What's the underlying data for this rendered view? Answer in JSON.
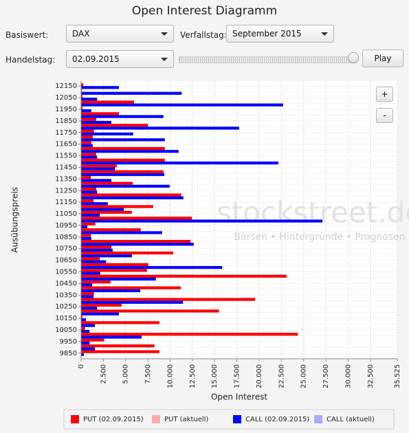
{
  "controls": {
    "title": "Open Interest Diagramm",
    "basiswert_label": "Basiswert:",
    "basiswert": "DAX",
    "verfallstag_label": "Verfallstag:",
    "verfallstag": "September 2015",
    "handelstag_label": "Handelstag:",
    "handelstag": "02.09.2015",
    "play": "Play",
    "zoom_in": "+",
    "zoom_out": "-"
  },
  "chart_data": {
    "type": "hbar",
    "x_label": "Open Interest",
    "y_label": "Ausübungspreis",
    "watermark": "stockstreet.de",
    "watermark_sub": "Börsen • Hintergründe • Prognosen",
    "categories": [
      "12150",
      null,
      "12050",
      null,
      "11950",
      null,
      "11850",
      null,
      "11750",
      null,
      "11650",
      null,
      "11550",
      null,
      "11450",
      null,
      "11350",
      null,
      "11250",
      null,
      "11150",
      null,
      "11050",
      null,
      "10950",
      null,
      "10850",
      null,
      "10750",
      null,
      "10650",
      null,
      "10550",
      null,
      "10450",
      null,
      "10350",
      null,
      "10250",
      null,
      "10150",
      null,
      "10050",
      null,
      "9950",
      null,
      "9850"
    ],
    "series": [
      {
        "name": "PUT (02.09.2015)",
        "color": "#ff0000",
        "values": [
          250,
          100,
          150,
          5950,
          150,
          4250,
          1700,
          7500,
          1450,
          1300,
          1150,
          9400,
          1700,
          9400,
          4000,
          9250,
          1100,
          5800,
          1700,
          11250,
          1400,
          8100,
          5700,
          12450,
          1600,
          6700,
          1100,
          12300,
          3400,
          10350,
          2100,
          7550,
          7400,
          23100,
          3300,
          11200,
          1450,
          19550,
          4550,
          15500,
          150,
          8800,
          450,
          24350,
          2600,
          8250,
          8800
        ]
      },
      {
        "name": "PUT (aktuell)",
        "color": "#ffaaaa",
        "values": [
          null,
          null,
          null,
          null,
          null,
          null,
          null,
          null,
          null,
          null,
          null,
          null,
          null,
          null,
          null,
          null,
          null,
          null,
          null,
          null,
          null,
          null,
          null,
          null,
          null,
          null,
          null,
          null,
          null,
          null,
          null,
          null,
          null,
          null,
          null,
          null,
          null,
          null,
          null,
          null,
          null,
          null,
          null,
          null,
          null,
          null,
          null
        ]
      },
      {
        "name": "CALL (02.09.2015)",
        "color": "#0000ff",
        "values": [
          4250,
          11300,
          1800,
          22700,
          1150,
          9250,
          3400,
          17750,
          5850,
          9400,
          1300,
          10950,
          1800,
          22150,
          3800,
          9350,
          3400,
          9950,
          1800,
          11500,
          3000,
          4800,
          2100,
          27100,
          700,
          9100,
          1150,
          12650,
          3550,
          5700,
          2800,
          15850,
          2150,
          8400,
          1250,
          6650,
          1400,
          11450,
          1800,
          4250,
          550,
          1550,
          950,
          6800,
          950,
          1550,
          300
        ]
      },
      {
        "name": "CALL (aktuell)",
        "color": "#aaaaff",
        "values": [
          null,
          null,
          null,
          null,
          null,
          null,
          null,
          null,
          null,
          null,
          null,
          null,
          null,
          null,
          null,
          null,
          null,
          null,
          null,
          null,
          null,
          null,
          null,
          null,
          null,
          null,
          null,
          null,
          null,
          null,
          null,
          null,
          null,
          null,
          null,
          null,
          null,
          null,
          null,
          null,
          null,
          null,
          null,
          null,
          null,
          null,
          null
        ]
      }
    ],
    "xlim": [
      0,
      35525
    ],
    "xticks": [
      0,
      {
        "value": 2500,
        "label": "2.500"
      },
      {
        "value": 5000,
        "label": "5.000"
      },
      {
        "value": 7500,
        "label": "7.500"
      },
      {
        "value": 10000,
        "label": "10.000"
      },
      {
        "value": 12500,
        "label": "12.500"
      },
      {
        "value": 15000,
        "label": "15.000"
      },
      {
        "value": 17500,
        "label": "17.500"
      },
      {
        "value": 20000,
        "label": "20.000"
      },
      {
        "value": 22500,
        "label": "22.500"
      },
      {
        "value": 25000,
        "label": "25.000"
      },
      {
        "value": 27500,
        "label": "27.500"
      },
      {
        "value": 30000,
        "label": "30.000"
      },
      {
        "value": 32500,
        "label": "32.500"
      },
      {
        "value": 35525,
        "label": "35.525"
      }
    ],
    "grid": true,
    "legend": "bottom"
  }
}
